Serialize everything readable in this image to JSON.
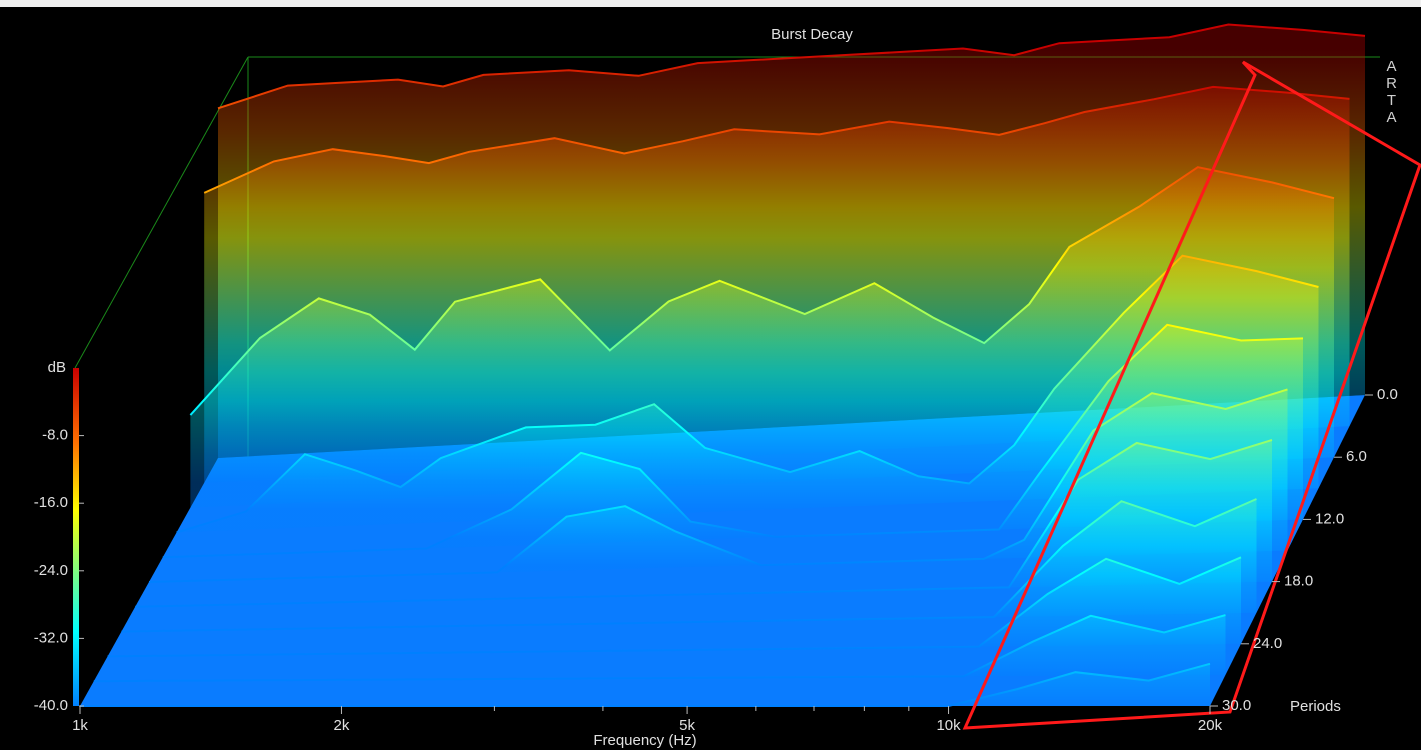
{
  "chart_data": {
    "type": "waterfall",
    "title": "Burst Decay",
    "watermark": "ARTA",
    "xlabel": "Frequency (Hz)",
    "ylabel": "dB",
    "zlabel": "Periods",
    "xscale": "log",
    "xlim": [
      1000,
      20000
    ],
    "xticks": [
      {
        "value": 1000,
        "label": "1k"
      },
      {
        "value": 2000,
        "label": "2k"
      },
      {
        "value": 5000,
        "label": "5k"
      },
      {
        "value": 10000,
        "label": "10k"
      },
      {
        "value": 20000,
        "label": "20k"
      }
    ],
    "xminorticks": [
      3000,
      4000,
      6000,
      7000,
      8000,
      9000
    ],
    "ylim": [
      -40,
      0
    ],
    "yticks": [
      {
        "value": -8,
        "label": "-8.0"
      },
      {
        "value": -16,
        "label": "-16.0"
      },
      {
        "value": -24,
        "label": "-24.0"
      },
      {
        "value": -32,
        "label": "-32.0"
      },
      {
        "value": -40,
        "label": "-40.0"
      }
    ],
    "zlim": [
      0,
      30
    ],
    "zticks": [
      {
        "value": 0,
        "label": "0.0"
      },
      {
        "value": 6,
        "label": "6.0"
      },
      {
        "value": 12,
        "label": "12.0"
      },
      {
        "value": 18,
        "label": "18.0"
      },
      {
        "value": 24,
        "label": "24.0"
      },
      {
        "value": 30,
        "label": "30.0"
      }
    ],
    "x": [
      1000,
      1200,
      1400,
      1600,
      1800,
      2000,
      2500,
      3000,
      3500,
      4000,
      5000,
      6000,
      7000,
      8000,
      9000,
      10000,
      12000,
      14000,
      17000,
      20000
    ],
    "slices": [
      {
        "period": 0,
        "values": [
          -3,
          -1,
          -1,
          -1,
          -2,
          -1,
          -1,
          -2,
          -1,
          -1,
          -1,
          -1,
          -1,
          -2,
          -1,
          -1,
          -1,
          0,
          -1,
          -2
        ]
      },
      {
        "period": 3,
        "values": [
          -9,
          -6,
          -5,
          -6,
          -7,
          -6,
          -5,
          -7,
          -6,
          -5,
          -6,
          -5,
          -6,
          -7,
          -6,
          -5,
          -4,
          -3,
          -4,
          -5
        ]
      },
      {
        "period": 6,
        "values": [
          -30,
          -22,
          -18,
          -20,
          -24,
          -19,
          -17,
          -25,
          -20,
          -18,
          -22,
          -19,
          -23,
          -26,
          -22,
          -16,
          -12,
          -8,
          -10,
          -12
        ]
      },
      {
        "period": 9,
        "values": [
          -40,
          -38,
          -32,
          -34,
          -36,
          -33,
          -30,
          -30,
          -28,
          -33,
          -36,
          -34,
          -37,
          -38,
          -34,
          -28,
          -20,
          -14,
          -16,
          -18
        ]
      },
      {
        "period": 12,
        "values": [
          -40,
          -40,
          -40,
          -40,
          -40,
          -40,
          -36,
          -30,
          -32,
          -38,
          -40,
          -40,
          -40,
          -40,
          -40,
          -34,
          -24,
          -18,
          -20,
          -20
        ]
      },
      {
        "period": 15,
        "values": [
          -40,
          -40,
          -40,
          -40,
          -40,
          -40,
          -40,
          -34,
          -33,
          -36,
          -40,
          -40,
          -40,
          -40,
          -40,
          -38,
          -26,
          -22,
          -24,
          -22
        ]
      },
      {
        "period": 18,
        "values": [
          -40,
          -40,
          -40,
          -40,
          -40,
          -40,
          -40,
          -40,
          -40,
          -40,
          -40,
          -40,
          -40,
          -40,
          -40,
          -40,
          -28,
          -24,
          -26,
          -24
        ]
      },
      {
        "period": 21,
        "values": [
          -40,
          -40,
          -40,
          -40,
          -40,
          -40,
          -40,
          -40,
          -40,
          -40,
          -40,
          -40,
          -40,
          -40,
          -40,
          -40,
          -32,
          -27,
          -30,
          -27
        ]
      },
      {
        "period": 24,
        "values": [
          -40,
          -40,
          -40,
          -40,
          -40,
          -40,
          -40,
          -40,
          -40,
          -40,
          -40,
          -40,
          -40,
          -40,
          -40,
          -40,
          -34,
          -30,
          -33,
          -30
        ]
      },
      {
        "period": 27,
        "values": [
          -40,
          -40,
          -40,
          -40,
          -40,
          -40,
          -40,
          -40,
          -40,
          -40,
          -40,
          -40,
          -40,
          -40,
          -40,
          -40,
          -36,
          -33,
          -35,
          -33
        ]
      },
      {
        "period": 30,
        "values": [
          -40,
          -40,
          -40,
          -40,
          -40,
          -40,
          -40,
          -40,
          -40,
          -40,
          -40,
          -40,
          -40,
          -40,
          -40,
          -40,
          -38,
          -36,
          -37,
          -35
        ]
      }
    ]
  }
}
